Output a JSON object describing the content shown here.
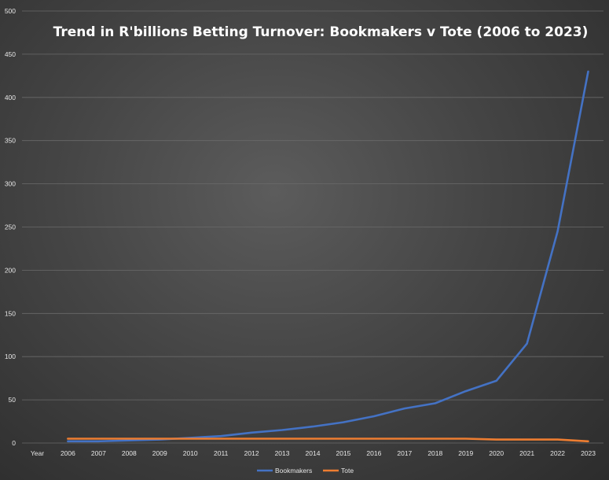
{
  "chart_data": {
    "type": "line",
    "title": "Trend in R'billions Betting Turnover: Bookmakers v Tote (2006 to 2023)",
    "xlabel": "",
    "ylabel": "",
    "categories": [
      "Year",
      "2006",
      "2007",
      "2008",
      "2009",
      "2010",
      "2011",
      "2012",
      "2013",
      "2014",
      "2015",
      "2016",
      "2017",
      "2018",
      "2019",
      "2020",
      "2021",
      "2022",
      "2023"
    ],
    "yticks": [
      "0",
      "50",
      "100",
      "150",
      "200",
      "250",
      "300",
      "350",
      "400",
      "450",
      "500"
    ],
    "ylim": [
      0,
      500
    ],
    "grid": true,
    "legend_position": "bottom",
    "series": [
      {
        "name": "Bookmakers",
        "color": "#4472c4",
        "values": [
          null,
          2,
          2,
          3,
          4,
          6,
          8,
          12,
          15,
          19,
          24,
          31,
          40,
          46,
          60,
          72,
          115,
          245,
          430
        ]
      },
      {
        "name": "Tote",
        "color": "#ed7d31",
        "values": [
          null,
          5,
          5,
          5,
          5,
          5,
          5,
          5,
          5,
          5,
          5,
          5,
          5,
          5,
          5,
          4,
          4,
          4,
          2
        ]
      }
    ]
  }
}
